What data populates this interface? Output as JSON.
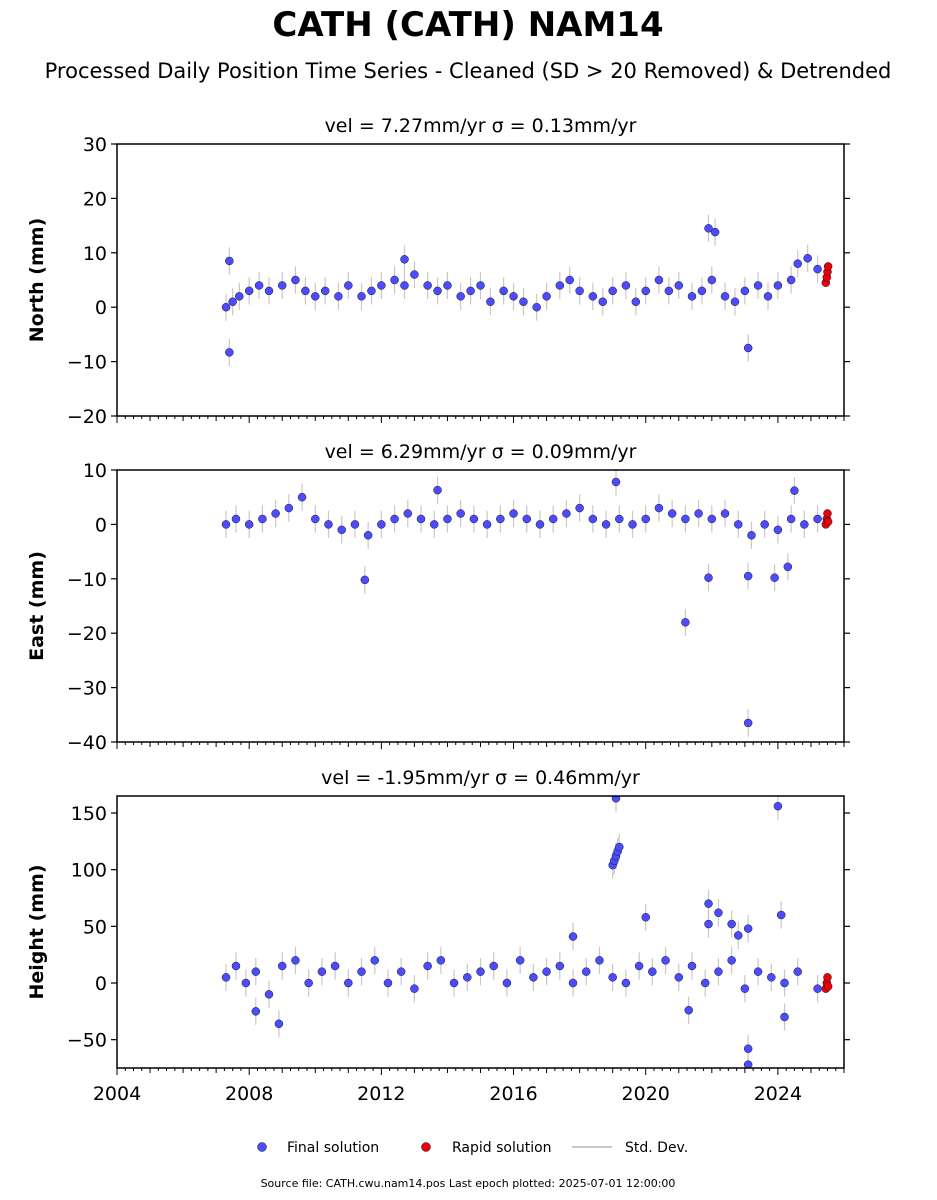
{
  "figure": {
    "title": "CATH (CATH) NAM14",
    "subtitle": "Processed Daily Position Time Series - Cleaned (SD > 20 Removed) & Detrended",
    "footer": "Source file: CATH.cwu.nam14.pos  Last epoch plotted: 2025-07-01 12:00:00"
  },
  "colors": {
    "final": "#4b4bff",
    "rapid": "#e8000b",
    "stddev": "#c8c8c8",
    "marker_edge": "#1a1a1a"
  },
  "legend": {
    "final": "Final solution",
    "rapid": "Rapid solution",
    "stddev": "Std. Dev."
  },
  "chart_data": [
    {
      "type": "scatter",
      "panel": "north",
      "title": "vel = 7.27mm/yr   σ = 0.13mm/yr",
      "ylabel": "North (mm)",
      "xlim": [
        2004,
        2026
      ],
      "ylim": [
        -20,
        30
      ],
      "yticks": [
        -20,
        -10,
        0,
        10,
        20,
        30
      ],
      "ytick_labels": [
        "−20",
        "−10",
        "0",
        "10",
        "20",
        "30"
      ],
      "series": [
        {
          "name": "Final solution",
          "points": [
            [
              2007.3,
              0
            ],
            [
              2007.5,
              1
            ],
            [
              2007.7,
              2
            ],
            [
              2008,
              3
            ],
            [
              2008.3,
              4
            ],
            [
              2008.6,
              3
            ],
            [
              2009,
              4
            ],
            [
              2009.4,
              5
            ],
            [
              2009.7,
              3
            ],
            [
              2010,
              2
            ],
            [
              2010.3,
              3
            ],
            [
              2010.7,
              2
            ],
            [
              2011,
              4
            ],
            [
              2011.4,
              2
            ],
            [
              2011.7,
              3
            ],
            [
              2012,
              4
            ],
            [
              2012.4,
              5
            ],
            [
              2012.7,
              4
            ],
            [
              2013,
              6
            ],
            [
              2013.4,
              4
            ],
            [
              2013.7,
              3
            ],
            [
              2014,
              4
            ],
            [
              2014.4,
              2
            ],
            [
              2014.7,
              3
            ],
            [
              2015,
              4
            ],
            [
              2015.3,
              1
            ],
            [
              2015.7,
              3
            ],
            [
              2016,
              2
            ],
            [
              2016.3,
              1
            ],
            [
              2016.7,
              0
            ],
            [
              2017,
              2
            ],
            [
              2017.4,
              4
            ],
            [
              2017.7,
              5
            ],
            [
              2018,
              3
            ],
            [
              2018.4,
              2
            ],
            [
              2018.7,
              1
            ],
            [
              2019,
              3
            ],
            [
              2019.4,
              4
            ],
            [
              2019.7,
              1
            ],
            [
              2020,
              3
            ],
            [
              2020.4,
              5
            ],
            [
              2020.7,
              3
            ],
            [
              2021,
              4
            ],
            [
              2021.4,
              2
            ],
            [
              2021.7,
              3
            ],
            [
              2022,
              5
            ],
            [
              2022.4,
              2
            ],
            [
              2022.7,
              1
            ],
            [
              2023,
              3
            ],
            [
              2023.4,
              4
            ],
            [
              2023.7,
              2
            ],
            [
              2024,
              4
            ],
            [
              2024.4,
              5
            ],
            [
              2024.6,
              8
            ],
            [
              2024.9,
              9
            ],
            [
              2025.2,
              7
            ],
            [
              2007.4,
              8.5
            ],
            [
              2007.4,
              -8.3
            ],
            [
              2021.9,
              14.5
            ],
            [
              2023.1,
              -7.5
            ],
            [
              2022.1,
              13.8
            ],
            [
              2012.7,
              8.8
            ]
          ]
        },
        {
          "name": "Rapid solution",
          "points": [
            [
              2025.45,
              4.5
            ],
            [
              2025.48,
              5.5
            ],
            [
              2025.5,
              6.5
            ],
            [
              2025.52,
              7.5
            ]
          ]
        }
      ]
    },
    {
      "type": "scatter",
      "panel": "east",
      "title": "vel = 6.29mm/yr   σ = 0.09mm/yr",
      "ylabel": "East (mm)",
      "xlim": [
        2004,
        2026
      ],
      "ylim": [
        -40,
        10
      ],
      "yticks": [
        -40,
        -30,
        -20,
        -10,
        0,
        10
      ],
      "ytick_labels": [
        "−40",
        "−30",
        "−20",
        "−10",
        "0",
        "10"
      ],
      "series": [
        {
          "name": "Final solution",
          "points": [
            [
              2007.3,
              0
            ],
            [
              2007.6,
              1
            ],
            [
              2008,
              0
            ],
            [
              2008.4,
              1
            ],
            [
              2008.8,
              2
            ],
            [
              2009.2,
              3
            ],
            [
              2009.6,
              5
            ],
            [
              2010,
              1
            ],
            [
              2010.4,
              0
            ],
            [
              2010.8,
              -1
            ],
            [
              2011.2,
              0
            ],
            [
              2011.6,
              -2
            ],
            [
              2012,
              0
            ],
            [
              2012.4,
              1
            ],
            [
              2012.8,
              2
            ],
            [
              2013.2,
              1
            ],
            [
              2013.6,
              0
            ],
            [
              2014,
              1
            ],
            [
              2014.4,
              2
            ],
            [
              2014.8,
              1
            ],
            [
              2015.2,
              0
            ],
            [
              2015.6,
              1
            ],
            [
              2016,
              2
            ],
            [
              2016.4,
              1
            ],
            [
              2016.8,
              0
            ],
            [
              2017.2,
              1
            ],
            [
              2017.6,
              2
            ],
            [
              2018,
              3
            ],
            [
              2018.4,
              1
            ],
            [
              2018.8,
              0
            ],
            [
              2019.2,
              1
            ],
            [
              2019.6,
              0
            ],
            [
              2020,
              1
            ],
            [
              2020.4,
              3
            ],
            [
              2020.8,
              2
            ],
            [
              2021.2,
              1
            ],
            [
              2021.6,
              2
            ],
            [
              2022,
              1
            ],
            [
              2022.4,
              2
            ],
            [
              2022.8,
              0
            ],
            [
              2023.2,
              -2
            ],
            [
              2023.6,
              0
            ],
            [
              2024,
              -1
            ],
            [
              2024.4,
              1
            ],
            [
              2024.8,
              0
            ],
            [
              2025.2,
              1
            ],
            [
              2011.5,
              -10.2
            ],
            [
              2021.2,
              -18
            ],
            [
              2021.9,
              -9.8
            ],
            [
              2023.1,
              -36.5
            ],
            [
              2023.1,
              -9.5
            ],
            [
              2023.9,
              -9.8
            ],
            [
              2019.1,
              7.8
            ],
            [
              2013.7,
              6.3
            ],
            [
              2024.5,
              6.2
            ],
            [
              2024.3,
              -7.8
            ]
          ]
        },
        {
          "name": "Rapid solution",
          "points": [
            [
              2025.45,
              0
            ],
            [
              2025.48,
              1
            ],
            [
              2025.5,
              2
            ],
            [
              2025.52,
              0.5
            ]
          ]
        }
      ]
    },
    {
      "type": "scatter",
      "panel": "height",
      "title": "vel = -1.95mm/yr   σ = 0.46mm/yr",
      "ylabel": "Height (mm)",
      "xlim": [
        2004,
        2026
      ],
      "ylim": [
        -75,
        165
      ],
      "yticks": [
        -50,
        0,
        50,
        100,
        150
      ],
      "ytick_labels": [
        "−50",
        "0",
        "50",
        "100",
        "150"
      ],
      "xticks": [
        2004,
        2008,
        2012,
        2016,
        2020,
        2024
      ],
      "xtick_labels": [
        "2004",
        "2008",
        "2012",
        "2016",
        "2020",
        "2024"
      ],
      "series": [
        {
          "name": "Final solution",
          "points": [
            [
              2007.3,
              5
            ],
            [
              2007.6,
              15
            ],
            [
              2007.9,
              0
            ],
            [
              2008.2,
              10
            ],
            [
              2008.6,
              -10
            ],
            [
              2009,
              15
            ],
            [
              2009.4,
              20
            ],
            [
              2009.8,
              0
            ],
            [
              2010.2,
              10
            ],
            [
              2010.6,
              15
            ],
            [
              2011,
              0
            ],
            [
              2011.4,
              10
            ],
            [
              2011.8,
              20
            ],
            [
              2012.2,
              0
            ],
            [
              2012.6,
              10
            ],
            [
              2013,
              -5
            ],
            [
              2013.4,
              15
            ],
            [
              2013.8,
              20
            ],
            [
              2014.2,
              0
            ],
            [
              2014.6,
              5
            ],
            [
              2015,
              10
            ],
            [
              2015.4,
              15
            ],
            [
              2015.8,
              0
            ],
            [
              2016.2,
              20
            ],
            [
              2016.6,
              5
            ],
            [
              2017,
              10
            ],
            [
              2017.4,
              15
            ],
            [
              2017.8,
              0
            ],
            [
              2018.2,
              10
            ],
            [
              2018.6,
              20
            ],
            [
              2019,
              5
            ],
            [
              2019.4,
              0
            ],
            [
              2019.8,
              15
            ],
            [
              2020.2,
              10
            ],
            [
              2020.6,
              20
            ],
            [
              2021,
              5
            ],
            [
              2021.4,
              15
            ],
            [
              2021.8,
              0
            ],
            [
              2022.2,
              10
            ],
            [
              2022.6,
              20
            ],
            [
              2023,
              -5
            ],
            [
              2023.4,
              10
            ],
            [
              2023.8,
              5
            ],
            [
              2024.2,
              0
            ],
            [
              2024.6,
              10
            ],
            [
              2025.2,
              -5
            ],
            [
              2019.0,
              104
            ],
            [
              2019.05,
              108
            ],
            [
              2019.1,
              112
            ],
            [
              2019.15,
              116
            ],
            [
              2019.2,
              120
            ],
            [
              2019.1,
              163
            ],
            [
              2020,
              58
            ],
            [
              2021.9,
              70
            ],
            [
              2021.9,
              52
            ],
            [
              2022.2,
              62
            ],
            [
              2022.6,
              52
            ],
            [
              2022.8,
              42
            ],
            [
              2023.1,
              48
            ],
            [
              2023.1,
              -58
            ],
            [
              2023.1,
              -72
            ],
            [
              2024.0,
              156
            ],
            [
              2024.1,
              60
            ],
            [
              2008.9,
              -36
            ],
            [
              2008.2,
              -25
            ],
            [
              2017.8,
              41
            ],
            [
              2021.3,
              -24
            ],
            [
              2024.2,
              -30
            ]
          ]
        },
        {
          "name": "Rapid solution",
          "points": [
            [
              2025.45,
              -5
            ],
            [
              2025.48,
              0
            ],
            [
              2025.5,
              5
            ],
            [
              2025.52,
              -3
            ]
          ]
        }
      ]
    }
  ]
}
